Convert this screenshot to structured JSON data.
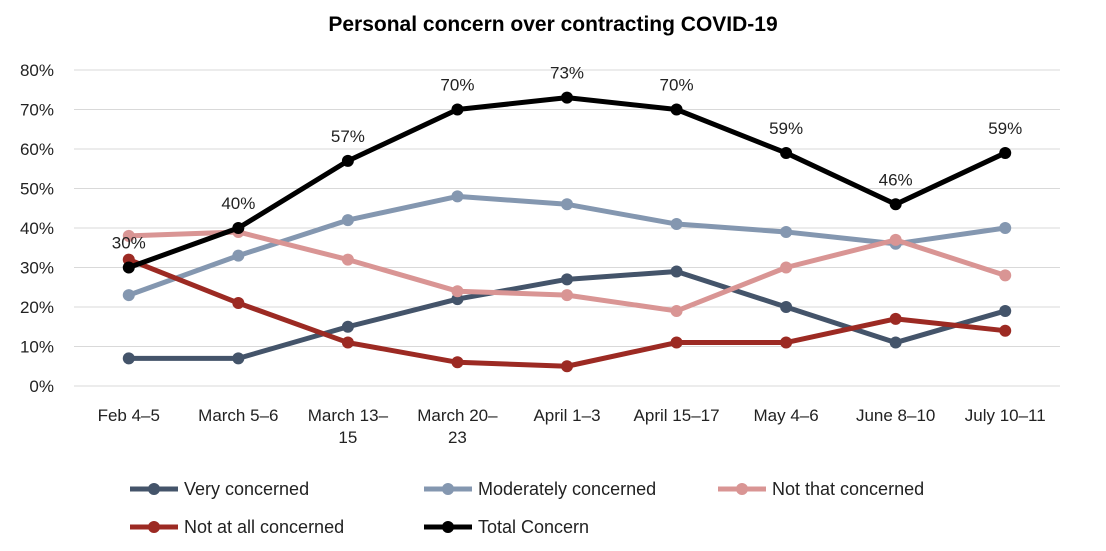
{
  "chart_data": {
    "type": "line",
    "title": "Personal concern over contracting COVID-19",
    "xlabel": "",
    "ylabel": "",
    "categories": [
      [
        "Feb 4–5"
      ],
      [
        "March 5–6"
      ],
      [
        "March 13–",
        "15"
      ],
      [
        "March 20–",
        "23"
      ],
      [
        "April 1–3"
      ],
      [
        "April 15–17"
      ],
      [
        "May 4–6"
      ],
      [
        "June 8–10"
      ],
      [
        "July 10–11"
      ]
    ],
    "ylim": [
      0,
      80
    ],
    "yticks": [
      0,
      10,
      20,
      30,
      40,
      50,
      60,
      70,
      80
    ],
    "ytick_labels": [
      "0%",
      "10%",
      "20%",
      "30%",
      "40%",
      "50%",
      "60%",
      "70%",
      "80%"
    ],
    "grid": "horizontal",
    "legend": "bottom",
    "series": [
      {
        "name": "Very concerned",
        "color": "#44546a",
        "values": [
          7,
          7,
          15,
          22,
          27,
          29,
          20,
          11,
          19
        ]
      },
      {
        "name": "Moderately concerned",
        "color": "#8497b0",
        "values": [
          23,
          33,
          42,
          48,
          46,
          41,
          39,
          36,
          40
        ]
      },
      {
        "name": "Not that concerned",
        "color": "#d99594",
        "values": [
          38,
          39,
          32,
          24,
          23,
          19,
          30,
          37,
          28
        ]
      },
      {
        "name": "Not at all concerned",
        "color": "#9c2a23",
        "values": [
          32,
          21,
          11,
          6,
          5,
          11,
          11,
          17,
          14
        ]
      },
      {
        "name": "Total Concern",
        "color": "#000000",
        "values": [
          30,
          40,
          57,
          70,
          73,
          70,
          59,
          46,
          59
        ],
        "data_labels": [
          "30%",
          "40%",
          "57%",
          "70%",
          "73%",
          "70%",
          "59%",
          "46%",
          "59%"
        ]
      }
    ]
  }
}
